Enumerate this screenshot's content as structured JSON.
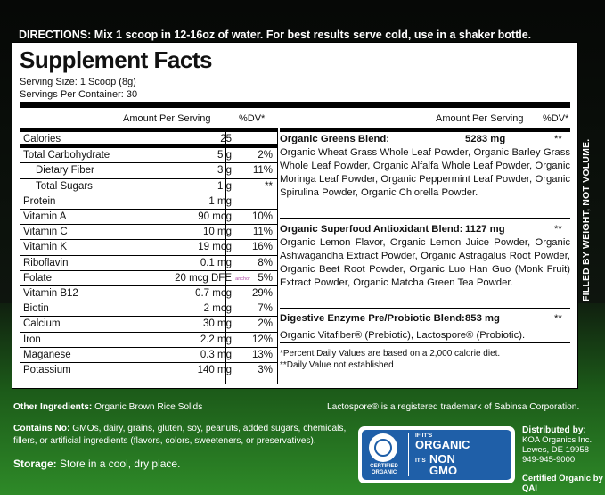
{
  "directions": "DIRECTIONS: Mix 1 scoop in 12-16oz of water.  For best results serve cold, use in a shaker bottle.",
  "side_text": "FILLED BY WEIGHT, NOT VOLUME.",
  "facts": {
    "title": "Supplement Facts",
    "serving_size": "Serving Size: 1 Scoop (8g)",
    "servings_per_container": "Servings Per Container: 30",
    "header_amount": "Amount Per Serving",
    "header_dv": "%DV*",
    "nutrients": [
      {
        "name": "Calories",
        "amount": "25",
        "dv": ""
      },
      {
        "name": "Total Carbohydrate",
        "amount": "5 g",
        "dv": "2%"
      },
      {
        "name": "Dietary Fiber",
        "amount": "3 g",
        "dv": "11%"
      },
      {
        "name": "Total Sugars",
        "amount": "1 g",
        "dv": "**"
      },
      {
        "name": "Protein",
        "amount": "1 mg",
        "dv": ""
      },
      {
        "name": "Vitamin A",
        "amount": "90 mcg",
        "dv": "10%"
      },
      {
        "name": "Vitamin C",
        "amount": "10 mg",
        "dv": "11%"
      },
      {
        "name": "Vitamin K",
        "amount": "19 mcg",
        "dv": "16%"
      },
      {
        "name": "Riboflavin",
        "amount": "0.1 mg",
        "dv": "8%"
      },
      {
        "name": "Folate",
        "amount": "20 mcg DFE",
        "dv": "5%",
        "note": "anchor"
      },
      {
        "name": "Vitamin B12",
        "amount": "0.7 mcg",
        "dv": "29%"
      },
      {
        "name": "Biotin",
        "amount": "2 mcg",
        "dv": "7%"
      },
      {
        "name": "Calcium",
        "amount": "30 mg",
        "dv": "2%"
      },
      {
        "name": "Iron",
        "amount": "2.2 mg",
        "dv": "12%"
      },
      {
        "name": "Maganese",
        "amount": "0.3 mg",
        "dv": "13%"
      },
      {
        "name": "Potassium",
        "amount": "140 mg",
        "dv": "3%"
      }
    ],
    "blends": [
      {
        "name": "Organic Greens Blend:",
        "amount": "5283 mg",
        "dv": "**",
        "desc": "Organic Wheat Grass Whole Leaf Powder, Organic Barley Grass Whole Leaf Powder, Organic Alfalfa Whole Leaf Powder, Organic Moringa Leaf Powder, Organic Peppermint Leaf Powder, Organic Spirulina Powder, Organic Chlorella Powder."
      },
      {
        "name": "Organic Superfood Antioxidant Blend:",
        "amount": "1127 mg",
        "dv": "**",
        "desc": "Organic Lemon Flavor, Organic Lemon Juice Powder, Organic Ashwagandha Extract Powder, Organic Astragalus Root Powder, Organic Beet Root Powder, Organic Luo Han Guo (Monk Fruit) Extract Powder, Organic Matcha Green Tea Powder."
      },
      {
        "name": "Digestive Enzyme Pre/Probiotic Blend:",
        "amount": "853 mg",
        "dv": "**",
        "desc": "Organic Vitafiber® (Prebiotic), Lactospore® (Probiotic)."
      }
    ],
    "footnote1": "*Percent Daily Values are based on a 2,000 calorie diet.",
    "footnote2": "**Daily Value not established"
  },
  "other_ingredients_label": "Other Ingredients:",
  "other_ingredients": "Organic Brown Rice Solids",
  "trademark": "Lactospore® is a registered trademark of Sabinsa Corporation.",
  "contains_no_label": "Contains No:",
  "contains_no_line1": "GMOs, dairy, grains, gluten, soy, peanuts, added sugars, chemicals,",
  "contains_no_line2": "fillers, or artificial ingredients (flavors, colors, sweeteners, or preservatives).",
  "storage_label": "Storage:",
  "storage": "Store in a cool, dry place.",
  "logo": {
    "certified": "CERTIFIED",
    "organic": "ORGANIC",
    "if_its": "IF IT'S",
    "organic_big": "ORGANIC",
    "its": "IT'S",
    "non": "NON",
    "gmo": "GMO"
  },
  "distributor": {
    "label": "Distributed by:",
    "name": "KOA Organics Inc.",
    "address": "Lewes, DE 19958",
    "phone": "949-945-9000"
  },
  "certified_by": "Certified Organic by QAI",
  "colors": {
    "accent_green": "#2e8a28",
    "logo_blue": "#1f5fa8"
  }
}
